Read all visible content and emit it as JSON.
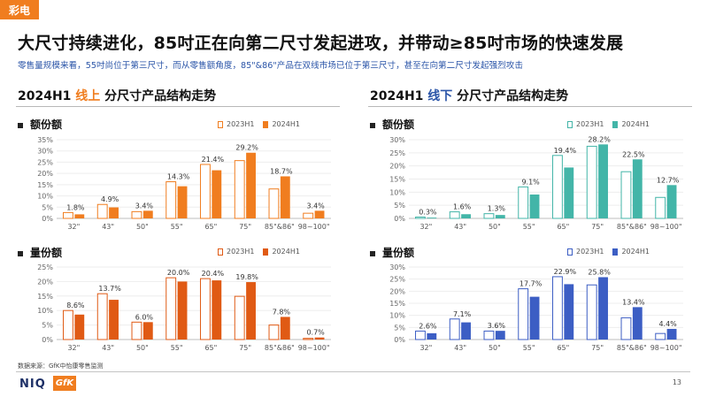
{
  "tag": "彩电",
  "title": "大尺寸持续进化，85吋正在向第二尺寸发起进攻，并带动≥85吋市场的快速发展",
  "subtitle": "零售量规模来看，55吋尚位于第三尺寸，而从零售额角度，85\"&86\"产品在双线市场已位于第三尺寸，甚至在向第二尺寸发起强烈攻击",
  "left_section": {
    "prefix": "2024H1 ",
    "highlight": "线上",
    "suffix": " 分尺寸产品结构走势"
  },
  "right_section": {
    "prefix": "2024H1 ",
    "highlight": "线下",
    "suffix": " 分尺寸产品结构走势"
  },
  "metric_amount": "额份额",
  "metric_volume": "量份额",
  "legend": {
    "a": "2023H1",
    "b": "2024H1"
  },
  "colors": {
    "orange": "#f07d1f",
    "orange_dark": "#e05a14",
    "teal": "#43b5a8",
    "blue": "#3c5ec4"
  },
  "chart_data": [
    {
      "type": "bar",
      "id": "online_amount",
      "title": "线上 额份额",
      "categories": [
        "32\"",
        "43\"",
        "50\"",
        "55\"",
        "65\"",
        "75\"",
        "85\"&86\"",
        "98~100\""
      ],
      "series": [
        {
          "name": "2023H1",
          "values": [
            2.6,
            6.2,
            3.0,
            16.3,
            24.0,
            25.7,
            13.1,
            2.3
          ]
        },
        {
          "name": "2024H1",
          "values": [
            1.8,
            4.9,
            3.4,
            14.3,
            21.4,
            29.2,
            18.7,
            3.4
          ]
        }
      ],
      "labels": [
        "1.8%",
        "4.9%",
        "3.4%",
        "14.3%",
        "21.4%",
        "29.2%",
        "18.7%",
        "3.4%"
      ],
      "yticks": [
        "0%",
        "5%",
        "10%",
        "15%",
        "20%",
        "25%",
        "30%",
        "35%"
      ],
      "ylim": [
        0,
        35
      ]
    },
    {
      "type": "bar",
      "id": "online_volume",
      "title": "线上 量份额",
      "categories": [
        "32\"",
        "43\"",
        "50\"",
        "55\"",
        "65\"",
        "75\"",
        "85\"&86\"",
        "98~100\""
      ],
      "series": [
        {
          "name": "2023H1",
          "values": [
            10.0,
            15.8,
            6.0,
            21.3,
            21.0,
            14.9,
            5.0,
            0.4
          ]
        },
        {
          "name": "2024H1",
          "values": [
            8.6,
            13.7,
            6.0,
            20.0,
            20.4,
            19.8,
            7.8,
            0.7
          ]
        }
      ],
      "labels": [
        "8.6%",
        "13.7%",
        "6.0%",
        "20.0%",
        "20.4%",
        "19.8%",
        "7.8%",
        "0.7%"
      ],
      "yticks": [
        "0%",
        "5%",
        "10%",
        "15%",
        "20%",
        "25%"
      ],
      "ylim": [
        0,
        25
      ]
    },
    {
      "type": "bar",
      "id": "offline_amount",
      "title": "线下 额份额",
      "categories": [
        "32\"",
        "43\"",
        "50\"",
        "55\"",
        "65\"",
        "75\"",
        "85\"&86\"",
        "98~100\""
      ],
      "series": [
        {
          "name": "2023H1",
          "values": [
            0.5,
            2.5,
            1.8,
            12.0,
            24.0,
            27.5,
            17.8,
            8.0
          ]
        },
        {
          "name": "2024H1",
          "values": [
            0.3,
            1.6,
            1.3,
            9.1,
            19.4,
            28.2,
            22.5,
            12.7
          ]
        }
      ],
      "labels": [
        "0.3%",
        "1.6%",
        "1.3%",
        "9.1%",
        "19.4%",
        "28.2%",
        "22.5%",
        "12.7%"
      ],
      "yticks": [
        "0%",
        "5%",
        "10%",
        "15%",
        "20%",
        "25%",
        "30%"
      ],
      "ylim": [
        0,
        30
      ]
    },
    {
      "type": "bar",
      "id": "offline_volume",
      "title": "线下 量份额",
      "categories": [
        "32\"",
        "43\"",
        "50\"",
        "55\"",
        "65\"",
        "75\"",
        "85\"&86\"",
        "98~100\""
      ],
      "series": [
        {
          "name": "2023H1",
          "values": [
            3.5,
            8.5,
            3.5,
            21.0,
            26.0,
            22.6,
            9.0,
            2.5
          ]
        },
        {
          "name": "2024H1",
          "values": [
            2.6,
            7.1,
            3.6,
            17.7,
            22.9,
            25.8,
            13.4,
            4.4
          ]
        }
      ],
      "labels": [
        "2.6%",
        "7.1%",
        "3.6%",
        "17.7%",
        "22.9%",
        "25.8%",
        "13.4%",
        "4.4%"
      ],
      "yticks": [
        "0%",
        "5%",
        "10%",
        "15%",
        "20%",
        "25%",
        "30%"
      ],
      "ylim": [
        0,
        30
      ]
    }
  ],
  "source": "数据来源：GfK中怡康零售监测",
  "logo_niq": "NIQ",
  "logo_gfk": "GfK",
  "page_number": "13"
}
